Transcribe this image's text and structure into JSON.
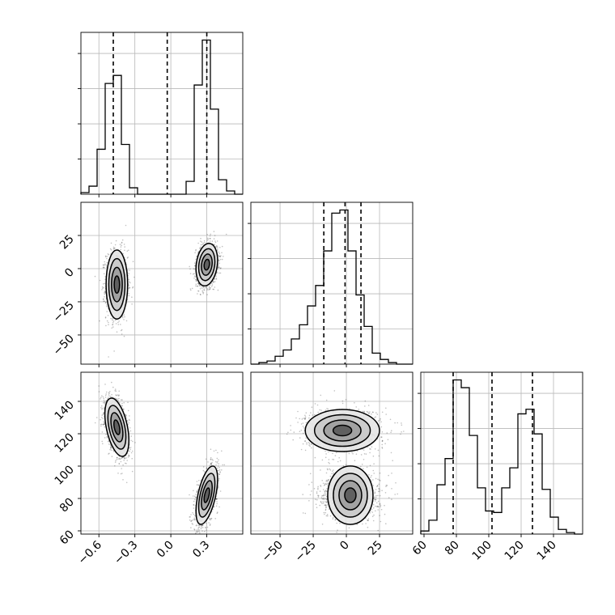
{
  "chart_data": {
    "type": "corner",
    "parameters": 3,
    "grid": true,
    "quantile_color": "#000000",
    "point_color": "#333333",
    "axes": {
      "p0": {
        "range": [
          -0.75,
          0.6
        ],
        "ticks": [
          -0.6,
          -0.3,
          0.0,
          0.3
        ],
        "tick_labels": [
          "−0.6",
          "−0.3",
          "0.0",
          "0.3"
        ]
      },
      "p1": {
        "range": [
          -72,
          50
        ],
        "ticks": [
          -50,
          -25,
          0,
          25
        ],
        "tick_labels": [
          "−50",
          "−25",
          "0",
          "25"
        ]
      },
      "p2": {
        "range": [
          58,
          158
        ],
        "ticks": [
          60,
          80,
          100,
          120,
          140
        ],
        "tick_labels": [
          "60",
          "80",
          "100",
          "120",
          "140"
        ]
      }
    },
    "histograms": [
      {
        "param": "p0",
        "bin_edges": [
          -0.75,
          -0.6825,
          -0.615,
          -0.5475,
          -0.48,
          -0.4125,
          -0.345,
          -0.2775,
          -0.21,
          -0.1425,
          -0.075,
          -0.0075,
          0.06,
          0.1275,
          0.195,
          0.2625,
          0.33,
          0.3975,
          0.465,
          0.5325,
          0.6
        ],
        "counts": [
          0.01,
          0.05,
          0.28,
          0.69,
          0.74,
          0.31,
          0.04,
          0.0,
          0.0,
          0.0,
          0.0,
          0.0,
          0.0,
          0.08,
          0.68,
          0.96,
          0.53,
          0.09,
          0.02,
          0.0
        ],
        "quantiles": [
          -0.48,
          -0.03,
          0.3
        ]
      },
      {
        "param": "p1",
        "bin_edges": [
          -72,
          -65.9,
          -59.8,
          -53.7,
          -47.6,
          -41.5,
          -35.4,
          -29.3,
          -23.2,
          -17.1,
          -11,
          -4.9,
          1.2,
          7.3,
          13.4,
          19.5,
          25.6,
          31.7,
          37.8,
          43.9,
          50
        ],
        "counts": [
          0.0,
          0.01,
          0.02,
          0.05,
          0.09,
          0.16,
          0.25,
          0.37,
          0.5,
          0.72,
          0.96,
          0.98,
          0.72,
          0.44,
          0.24,
          0.07,
          0.03,
          0.01,
          0.0,
          0.0
        ],
        "quantiles": [
          -17,
          -1,
          11
        ]
      },
      {
        "param": "p2",
        "bin_edges": [
          58,
          63,
          68,
          73,
          78,
          83,
          88,
          93,
          98,
          103,
          108,
          113,
          118,
          123,
          128,
          133,
          138,
          143,
          148,
          153,
          158
        ],
        "counts": [
          0.02,
          0.09,
          0.32,
          0.49,
          1.0,
          0.95,
          0.64,
          0.3,
          0.15,
          0.14,
          0.3,
          0.43,
          0.78,
          0.81,
          0.65,
          0.29,
          0.11,
          0.03,
          0.01,
          0.0
        ],
        "quantiles": [
          78,
          102,
          127
        ]
      }
    ],
    "joint_2d": [
      {
        "x": "p0",
        "y": "p1",
        "modes": [
          {
            "center": [
              -0.45,
              -12
            ],
            "spread": [
              0.045,
              13
            ],
            "rho": 0.0,
            "weight": 0.5
          },
          {
            "center": [
              0.3,
              3
            ],
            "spread": [
              0.045,
              8
            ],
            "rho": 0.2,
            "weight": 0.5
          }
        ]
      },
      {
        "x": "p0",
        "y": "p2",
        "modes": [
          {
            "center": [
              -0.45,
              124
            ],
            "spread": [
              0.05,
              9
            ],
            "rho": -0.45,
            "weight": 0.5
          },
          {
            "center": [
              0.3,
              82
            ],
            "spread": [
              0.045,
              9
            ],
            "rho": 0.55,
            "weight": 0.5
          }
        ]
      },
      {
        "x": "p1",
        "y": "p2",
        "modes": [
          {
            "center": [
              -3,
              122
            ],
            "spread": [
              14,
              6.5
            ],
            "rho": 0.0,
            "weight": 0.5
          },
          {
            "center": [
              3,
              82
            ],
            "spread": [
              11,
              7
            ],
            "rho": 0.0,
            "weight": 0.5
          }
        ]
      }
    ],
    "contour_levels_sigma": [
      0.5,
      1.0,
      1.5,
      2.0
    ]
  }
}
